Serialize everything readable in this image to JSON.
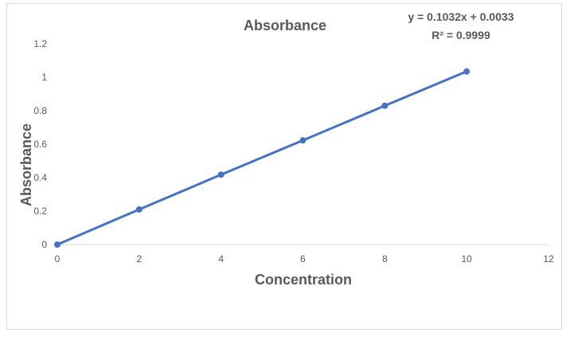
{
  "chart_data": {
    "type": "scatter",
    "title": "Absorbance",
    "xlabel": "Concentration",
    "ylabel": "Absorbance",
    "xlim": [
      0,
      12
    ],
    "ylim": [
      0,
      1.2
    ],
    "x_ticks": [
      0,
      2,
      4,
      6,
      8,
      10,
      12
    ],
    "y_ticks": [
      0,
      0.2,
      0.4,
      0.6,
      0.8,
      1,
      1.2
    ],
    "grid": false,
    "series": [
      {
        "x": [
          0,
          2,
          4,
          6,
          8,
          10
        ],
        "y": [
          0,
          0.21,
          0.418,
          0.623,
          0.83,
          1.035
        ],
        "color": "#4472C4",
        "line": true,
        "markers": true
      }
    ],
    "trendline": {
      "equation": "y = 0.1032x + 0.0033",
      "r_squared": "R² = 0.9999"
    }
  }
}
